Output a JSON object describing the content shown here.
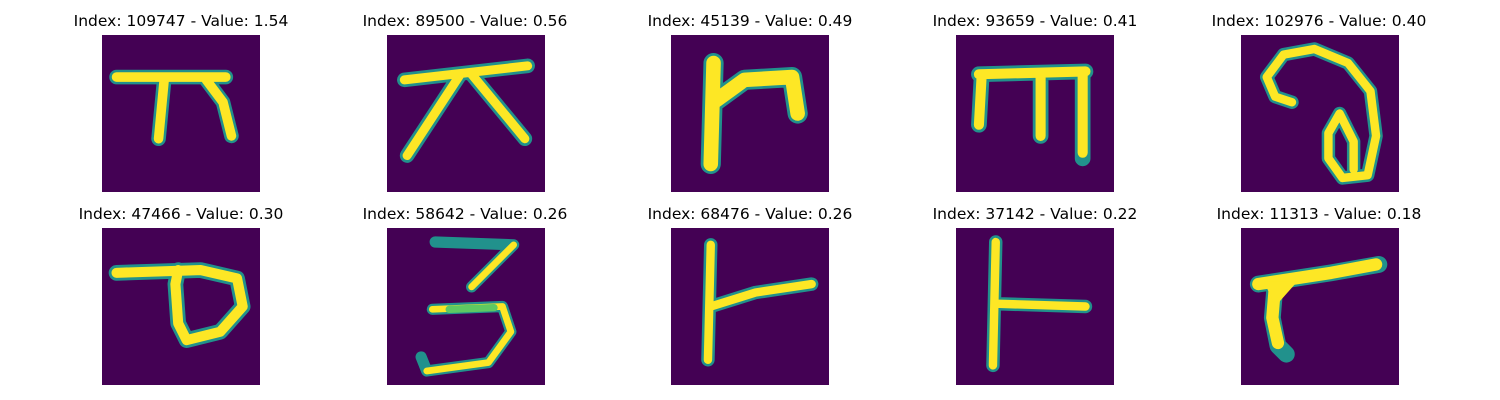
{
  "colors": {
    "background": "#440154",
    "stroke_core": "#fde725",
    "stroke_edge": "#21918c",
    "stroke_mid": "#5ec962"
  },
  "tiles": [
    {
      "index": "109747",
      "value": "1.54",
      "title": "Index: 109747 - Value: 1.54"
    },
    {
      "index": "89500",
      "value": "0.56",
      "title": "Index: 89500 - Value: 0.56"
    },
    {
      "index": "45139",
      "value": "0.49",
      "title": "Index: 45139 - Value: 0.49"
    },
    {
      "index": "93659",
      "value": "0.41",
      "title": "Index: 93659 - Value: 0.41"
    },
    {
      "index": "102976",
      "value": "0.40",
      "title": "Index: 102976 - Value: 0.40"
    },
    {
      "index": "47466",
      "value": "0.30",
      "title": "Index: 47466 - Value: 0.30"
    },
    {
      "index": "58642",
      "value": "0.26",
      "title": "Index: 58642 - Value: 0.26"
    },
    {
      "index": "68476",
      "value": "0.26",
      "title": "Index: 68476 - Value: 0.26"
    },
    {
      "index": "37142",
      "value": "0.22",
      "title": "Index: 37142 - Value: 0.22"
    },
    {
      "index": "11313",
      "value": "0.18",
      "title": "Index: 11313 - Value: 0.18"
    }
  ]
}
